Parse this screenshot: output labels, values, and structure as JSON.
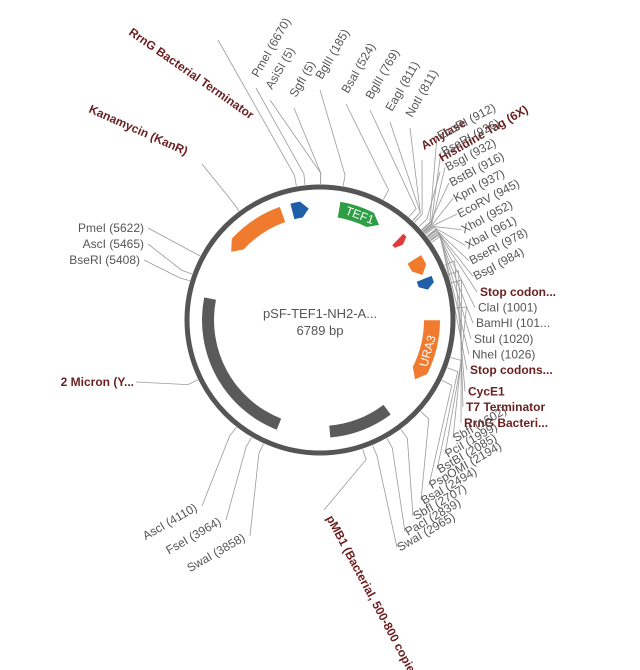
{
  "plasmid": {
    "name": "pSF-TEF1-NH2-A...",
    "size": "6789 bp",
    "total_bp": 6789
  },
  "colors": {
    "backbone": "#555555",
    "promoter": "#2e9e44",
    "marker": "#f07b2e",
    "terminator": "#1f5fa8",
    "origin": "#5a5a5a",
    "tag": "#e23b3b",
    "feature_label": "#6b1f1f"
  },
  "features": [
    {
      "label": "TEF1",
      "type": "promoter",
      "start": 185,
      "end": 600,
      "strand": 1
    },
    {
      "label": "URA3",
      "type": "marker",
      "start": 1700,
      "end": 2300,
      "strand": 1
    },
    {
      "label": "",
      "type": "marker",
      "start": 1080,
      "end": 1250,
      "strand": 1
    },
    {
      "label": "",
      "type": "tag",
      "start": 830,
      "end": 900,
      "strand": 1
    },
    {
      "label": "",
      "type": "terminator",
      "start": 1290,
      "end": 1400,
      "strand": 1
    },
    {
      "label": "",
      "type": "origin",
      "start": 2700,
      "end": 3300,
      "strand": 0
    },
    {
      "label": "",
      "type": "origin",
      "start": 3800,
      "end": 5300,
      "strand": 0
    },
    {
      "label": "",
      "type": "marker",
      "start": 5800,
      "end": 6420,
      "strand": -1
    },
    {
      "label": "",
      "type": "terminator",
      "start": 6520,
      "end": 6680,
      "strand": 1
    }
  ],
  "top_labels": [
    {
      "text": "RrnG Bacterial Terminator",
      "kind": "feature",
      "pos": 6600
    },
    {
      "text": "PmeI (6670)",
      "kind": "site",
      "pos": 6670
    },
    {
      "text": "AsiSI (5)",
      "kind": "site",
      "pos": 5
    },
    {
      "text": "SgfI (5)",
      "kind": "site",
      "pos": 5
    },
    {
      "text": "BglII (185)",
      "kind": "site",
      "pos": 185
    },
    {
      "text": "BsaI (524)",
      "kind": "site",
      "pos": 524
    },
    {
      "text": "BglII (769)",
      "kind": "site",
      "pos": 769
    },
    {
      "text": "EagI (811)",
      "kind": "site",
      "pos": 811
    },
    {
      "text": "NotI (811)",
      "kind": "site",
      "pos": 811
    },
    {
      "text": "Amylase",
      "kind": "feature",
      "pos": 830
    },
    {
      "text": "Histidine Tag (6X)",
      "kind": "feature",
      "pos": 880
    }
  ],
  "right_labels": [
    {
      "text": "EcoRI (912)",
      "kind": "site",
      "pos": 912
    },
    {
      "text": "BseRI (926)",
      "kind": "site",
      "pos": 926
    },
    {
      "text": "BsgI (932)",
      "kind": "site",
      "pos": 932
    },
    {
      "text": "BstBI (916)",
      "kind": "site",
      "pos": 916
    },
    {
      "text": "KpnI (937)",
      "kind": "site",
      "pos": 937
    },
    {
      "text": "EcoRV (945)",
      "kind": "site",
      "pos": 945
    },
    {
      "text": "XhoI (952)",
      "kind": "site",
      "pos": 952
    },
    {
      "text": "XbaI (961)",
      "kind": "site",
      "pos": 961
    },
    {
      "text": "BseRI (978)",
      "kind": "site",
      "pos": 978
    },
    {
      "text": "BsgI (984)",
      "kind": "site",
      "pos": 984
    },
    {
      "text": "Stop codon...",
      "kind": "feature",
      "pos": 990
    },
    {
      "text": "ClaI (1001)",
      "kind": "site",
      "pos": 1001
    },
    {
      "text": "BamHI (101...",
      "kind": "site",
      "pos": 1010
    },
    {
      "text": "StuI (1020)",
      "kind": "site",
      "pos": 1020
    },
    {
      "text": "NheI (1026)",
      "kind": "site",
      "pos": 1026
    },
    {
      "text": "Stop codons...",
      "kind": "feature",
      "pos": 1040
    },
    {
      "text": "CycE1",
      "kind": "feature",
      "pos": 1250
    },
    {
      "text": "T7 Terminator",
      "kind": "feature",
      "pos": 1330
    },
    {
      "text": "RrnG Bacteri...",
      "kind": "feature",
      "pos": 1400
    },
    {
      "text": "SbfI (1602)",
      "kind": "site",
      "pos": 1602
    },
    {
      "text": "PciI (1999)",
      "kind": "site",
      "pos": 1999
    },
    {
      "text": "BstBI (2085)",
      "kind": "site",
      "pos": 2085
    },
    {
      "text": "PspOMI (2194)",
      "kind": "site",
      "pos": 2194
    },
    {
      "text": "BsaI (2494)",
      "kind": "site",
      "pos": 2494
    },
    {
      "text": "SbfI (2707)",
      "kind": "site",
      "pos": 2707
    },
    {
      "text": "PacI (2839)",
      "kind": "site",
      "pos": 2839
    },
    {
      "text": "SwaI (2965)",
      "kind": "site",
      "pos": 2965
    }
  ],
  "bottom_labels": [
    {
      "text": "pMB1 (Bacterial, 500-800 copies)",
      "kind": "feature",
      "pos": 3050
    }
  ],
  "left_labels": [
    {
      "text": "AscI (4110)",
      "kind": "site",
      "pos": 4110
    },
    {
      "text": "FseI (3964)",
      "kind": "site",
      "pos": 3964
    },
    {
      "text": "SwaI (3858)",
      "kind": "site",
      "pos": 3858
    },
    {
      "text": "2 Micron (Y...",
      "kind": "feature",
      "pos": 4600
    },
    {
      "text": "BseRI (5408)",
      "kind": "site",
      "pos": 5408
    },
    {
      "text": "AscI (5465)",
      "kind": "site",
      "pos": 5465
    },
    {
      "text": "PmeI (5622)",
      "kind": "site",
      "pos": 5622
    },
    {
      "text": "Kanamycin (KanR)",
      "kind": "feature",
      "pos": 6100
    }
  ]
}
